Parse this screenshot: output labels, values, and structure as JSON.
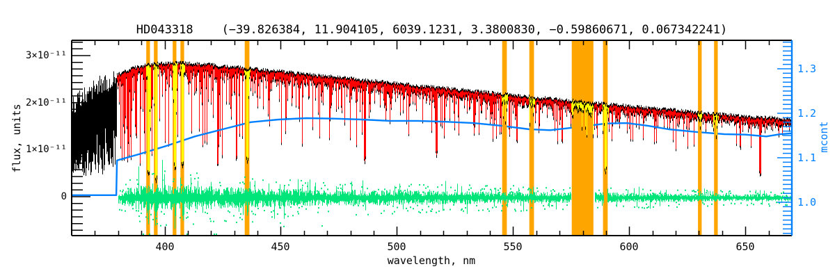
{
  "title": "HD043318    (−39.826384, 11.904105, 6039.1231, 3.3800830, −0.59860671, 0.067342241)",
  "colors": {
    "background": "#FFFFFF",
    "axis": "#000000",
    "right_axis": "#0080FF",
    "masked_band": "#FFA500",
    "observed": "#000000",
    "fit": "#FF0000",
    "masked_fit": "#FFFF00",
    "residuals": "#00E57A",
    "continuum": "#0080FF"
  },
  "chart_data": {
    "type": "line",
    "title": "HD043318    (−39.826384, 11.904105, 6039.1231, 3.3800830, −0.59860671, 0.067342241)",
    "x_label": "wavelength, nm",
    "y_left_label": "flux, units",
    "y_right_label": "mcont",
    "x_range": [
      360,
      670
    ],
    "x_major_ticks": [
      400,
      450,
      500,
      550,
      600,
      650
    ],
    "x_tick_labels": [
      "400",
      "450",
      "500",
      "550",
      "600",
      "650"
    ],
    "x_minor_step_nm": 10,
    "flux_units_factor": "1e-11",
    "flux_range_1e11": [
      -0.83,
      3.32
    ],
    "flux_ticks": {
      "values": [
        0,
        1,
        2,
        3
      ],
      "labels": [
        "0",
        "1×10⁻¹¹",
        "2×10⁻¹¹",
        "3×10⁻¹¹"
      ]
    },
    "mcont_range": [
      0.925,
      1.364
    ],
    "mcont_ticks": {
      "values": [
        1.0,
        1.1,
        1.2,
        1.3
      ],
      "labels": [
        "1.0",
        "1.1",
        "1.2",
        "1.3"
      ]
    },
    "series": {
      "observed": {
        "name": "observed spectrum",
        "color": "#000000",
        "start_nm": 360,
        "envelope_nm_flux1e11": [
          [
            360,
            2.0
          ],
          [
            364,
            2.18
          ],
          [
            368,
            2.33
          ],
          [
            372,
            2.46
          ],
          [
            376,
            2.54
          ],
          [
            379.5,
            2.6
          ],
          [
            383,
            2.67
          ],
          [
            387,
            2.74
          ],
          [
            391,
            2.79
          ],
          [
            395,
            2.82
          ],
          [
            400,
            2.84
          ],
          [
            405,
            2.85
          ],
          [
            410,
            2.84
          ],
          [
            415,
            2.82
          ],
          [
            420,
            2.8
          ],
          [
            430,
            2.76
          ],
          [
            440,
            2.71
          ],
          [
            450,
            2.66
          ],
          [
            460,
            2.61
          ],
          [
            470,
            2.56
          ],
          [
            480,
            2.51
          ],
          [
            490,
            2.46
          ],
          [
            500,
            2.41
          ],
          [
            510,
            2.36
          ],
          [
            520,
            2.31
          ],
          [
            530,
            2.26
          ],
          [
            540,
            2.21
          ],
          [
            550,
            2.16
          ],
          [
            560,
            2.11
          ],
          [
            570,
            2.07
          ],
          [
            580,
            2.02
          ],
          [
            590,
            1.97
          ],
          [
            600,
            1.93
          ],
          [
            610,
            1.88
          ],
          [
            620,
            1.84
          ],
          [
            630,
            1.79
          ],
          [
            640,
            1.75
          ],
          [
            650,
            1.71
          ],
          [
            660,
            1.68
          ],
          [
            670,
            1.65
          ]
        ]
      },
      "fit": {
        "name": "fitted spectrum",
        "color": "#FF0000",
        "start_nm": 379.5
      },
      "masked_fit": {
        "name": "masked fit segments",
        "color": "#FFFF00"
      },
      "residuals": {
        "name": "residuals (obs - fit)",
        "color": "#00E57A",
        "start_nm": 380.2,
        "center_flux1e11": -0.02,
        "half_amplitude_nm_flux1e11": [
          [
            380.5,
            0.1
          ],
          [
            384,
            0.15
          ],
          [
            388,
            0.19
          ],
          [
            392,
            0.22
          ],
          [
            396,
            0.24
          ],
          [
            400,
            0.22
          ],
          [
            404,
            0.21
          ],
          [
            408,
            0.22
          ],
          [
            412,
            0.21
          ],
          [
            416,
            0.2
          ],
          [
            420,
            0.19
          ],
          [
            425,
            0.18
          ],
          [
            430,
            0.18
          ],
          [
            435,
            0.17
          ],
          [
            440,
            0.16
          ],
          [
            450,
            0.15
          ],
          [
            460,
            0.14
          ],
          [
            470,
            0.13
          ],
          [
            480,
            0.13
          ],
          [
            490,
            0.13
          ],
          [
            500,
            0.12
          ],
          [
            510,
            0.12
          ],
          [
            520,
            0.11
          ],
          [
            530,
            0.11
          ],
          [
            540,
            0.1
          ],
          [
            550,
            0.1
          ],
          [
            560,
            0.1
          ],
          [
            570,
            0.09
          ],
          [
            580,
            0.09
          ],
          [
            590,
            0.09
          ],
          [
            600,
            0.08
          ],
          [
            610,
            0.08
          ],
          [
            620,
            0.07
          ],
          [
            630,
            0.07
          ],
          [
            640,
            0.06
          ],
          [
            650,
            0.06
          ],
          [
            660,
            0.06
          ],
          [
            670,
            0.05
          ]
        ],
        "gaps_nm": [
          [
            575.0,
            585.0
          ],
          [
            589.0,
            590.4
          ]
        ]
      },
      "continuum": {
        "name": "mcont continuum",
        "color": "#0080FF",
        "points_nm_mcont": [
          [
            360,
            1.016
          ],
          [
            379.2,
            1.016
          ],
          [
            379.5,
            1.094
          ],
          [
            389,
            1.108
          ],
          [
            401,
            1.127
          ],
          [
            413,
            1.148
          ],
          [
            425,
            1.164
          ],
          [
            437,
            1.18
          ],
          [
            449,
            1.186
          ],
          [
            461,
            1.189
          ],
          [
            473,
            1.188
          ],
          [
            485,
            1.186
          ],
          [
            497,
            1.183
          ],
          [
            509,
            1.183
          ],
          [
            521,
            1.181
          ],
          [
            533,
            1.178
          ],
          [
            545,
            1.172
          ],
          [
            557,
            1.164
          ],
          [
            566,
            1.162
          ],
          [
            578,
            1.169
          ],
          [
            590,
            1.177
          ],
          [
            599,
            1.178
          ],
          [
            608,
            1.172
          ],
          [
            617,
            1.164
          ],
          [
            629,
            1.158
          ],
          [
            641,
            1.153
          ],
          [
            650,
            1.152
          ],
          [
            659,
            1.148
          ],
          [
            665,
            1.153
          ],
          [
            670,
            1.155
          ]
        ]
      }
    },
    "masked_bands_nm": [
      [
        392.9,
        0.8
      ],
      [
        396.2,
        0.8
      ],
      [
        404.3,
        0.8
      ],
      [
        407.6,
        0.8
      ],
      [
        435.5,
        1.0
      ],
      [
        546.3,
        1.0
      ],
      [
        558.0,
        1.0
      ],
      [
        579.9,
        4.65
      ],
      [
        589.7,
        1.0
      ],
      [
        630.4,
        0.8
      ],
      [
        637.3,
        0.8
      ]
    ],
    "absorption_lines": [
      {
        "nm": 393.0,
        "flux_min_1e11": 0.38,
        "masked": true
      },
      {
        "nm": 396.3,
        "flux_min_1e11": 0.24,
        "masked": true
      },
      {
        "nm": 404.4,
        "flux_min_1e11": 0.5,
        "masked": true
      },
      {
        "nm": 407.7,
        "flux_min_1e11": 0.54,
        "masked": true
      },
      {
        "nm": 422.7,
        "flux_min_1e11": 0.58,
        "masked": false
      },
      {
        "nm": 430.8,
        "flux_min_1e11": 0.72,
        "masked": false
      },
      {
        "nm": 435.5,
        "flux_min_1e11": 0.65,
        "masked": true
      },
      {
        "nm": 486.1,
        "flux_min_1e11": 0.66,
        "masked": false
      },
      {
        "nm": 517.0,
        "flux_min_1e11": 0.8,
        "masked": false
      },
      {
        "nm": 589.7,
        "flux_min_1e11": 0.42,
        "masked": true
      },
      {
        "nm": 656.3,
        "flux_min_1e11": 0.38,
        "masked": false
      }
    ]
  }
}
